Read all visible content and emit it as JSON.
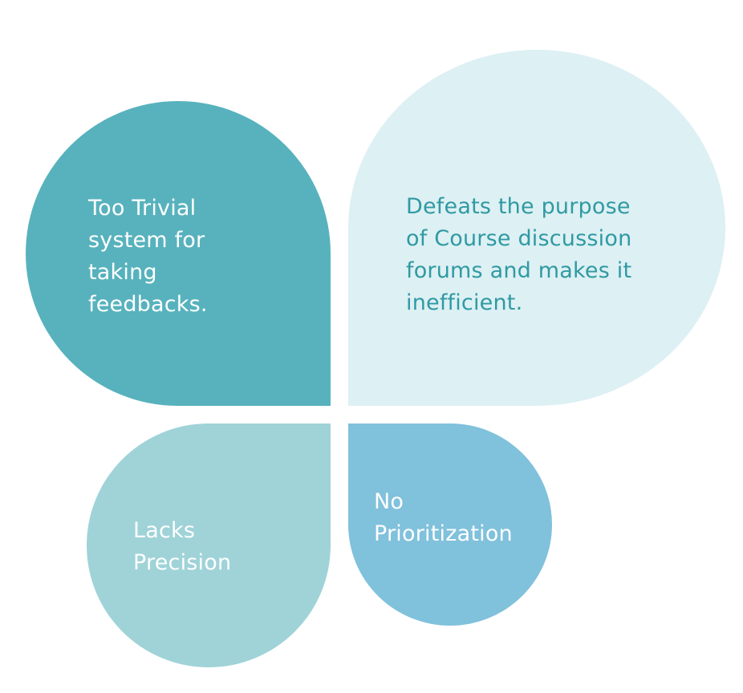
{
  "colors": {
    "top_left": "#57b2bd",
    "top_right": "#ddf0f3",
    "bottom_left": "#9fd3d8",
    "bottom_right": "#80c1dc",
    "text_light": "#ffffff",
    "text_dark": "#2f9aa3"
  },
  "petals": [
    {
      "position": "top-left",
      "text": "Too Trivial system for taking feedbacks."
    },
    {
      "position": "top-right",
      "text": "Defeats the purpose of Course discussion forums and makes it inefficient."
    },
    {
      "position": "bottom-left",
      "text": "Lacks Precision"
    },
    {
      "position": "bottom-right",
      "text": "No Prioritization"
    }
  ]
}
